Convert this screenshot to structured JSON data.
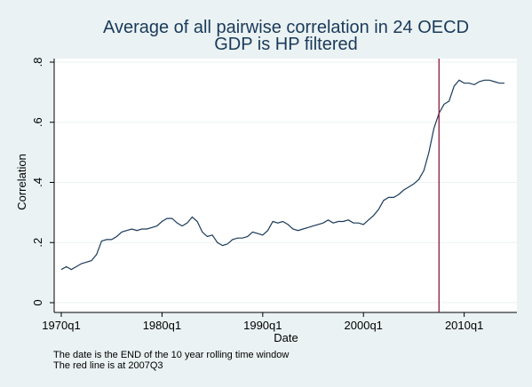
{
  "chart_data": {
    "type": "line",
    "title": "Average of all pairwise correlation in 24 OECD",
    "subtitle": "GDP is HP filtered",
    "xlabel": "Date",
    "ylabel": "Correlation",
    "ylim": [
      0,
      0.8
    ],
    "yticks": [
      0,
      0.2,
      0.4,
      0.6,
      0.8
    ],
    "ytick_labels": [
      "0",
      ".2",
      ".4",
      ".6",
      ".8"
    ],
    "xlim": [
      "1970q1",
      "2014q1"
    ],
    "xticks": [
      "1970q1",
      "1980q1",
      "1990q1",
      "2000q1",
      "2010q1"
    ],
    "grid": true,
    "colors": {
      "line": "#1a3a5a",
      "vline": "#8b1a3a",
      "background": "#eaf2f3",
      "plot": "#ffffff"
    },
    "vline": "2007q3",
    "notes": [
      "The date is the END of the 10 year rolling time window",
      "The red line is at 2007Q3"
    ],
    "series": [
      {
        "x": [
          "1970q1",
          "1970q3",
          "1971q1",
          "1971q3",
          "1972q1",
          "1972q3",
          "1973q1",
          "1973q3",
          "1974q1",
          "1974q3",
          "1975q1",
          "1975q3",
          "1976q1",
          "1976q3",
          "1977q1",
          "1977q3",
          "1978q1",
          "1978q3",
          "1979q1",
          "1979q3",
          "1980q1",
          "1980q3",
          "1981q1",
          "1981q3",
          "1982q1",
          "1982q3",
          "1983q1",
          "1983q3",
          "1984q1",
          "1984q3",
          "1985q1",
          "1985q3",
          "1986q1",
          "1986q3",
          "1987q1",
          "1987q3",
          "1988q1",
          "1988q3",
          "1989q1",
          "1989q3",
          "1990q1",
          "1990q3",
          "1991q1",
          "1991q3",
          "1992q1",
          "1992q3",
          "1993q1",
          "1993q3",
          "1994q1",
          "1994q3",
          "1995q1",
          "1995q3",
          "1996q1",
          "1996q3",
          "1997q1",
          "1997q3",
          "1998q1",
          "1998q3",
          "1999q1",
          "1999q3",
          "2000q1",
          "2000q3",
          "2001q1",
          "2001q3",
          "2002q1",
          "2002q3",
          "2003q1",
          "2003q3",
          "2004q1",
          "2004q3",
          "2005q1",
          "2005q3",
          "2006q1",
          "2006q3",
          "2007q1",
          "2007q3",
          "2008q1",
          "2008q3",
          "2009q1",
          "2009q3",
          "2010q1",
          "2010q3",
          "2011q1",
          "2011q3",
          "2012q1",
          "2012q3",
          "2013q1",
          "2013q3",
          "2014q1"
        ],
        "values": [
          0.11,
          0.12,
          0.11,
          0.12,
          0.13,
          0.135,
          0.14,
          0.16,
          0.205,
          0.21,
          0.21,
          0.22,
          0.235,
          0.24,
          0.245,
          0.24,
          0.245,
          0.245,
          0.25,
          0.255,
          0.27,
          0.28,
          0.28,
          0.265,
          0.255,
          0.265,
          0.285,
          0.27,
          0.235,
          0.22,
          0.225,
          0.2,
          0.19,
          0.195,
          0.21,
          0.215,
          0.215,
          0.22,
          0.235,
          0.23,
          0.225,
          0.24,
          0.27,
          0.265,
          0.27,
          0.26,
          0.245,
          0.24,
          0.245,
          0.25,
          0.255,
          0.26,
          0.265,
          0.275,
          0.265,
          0.27,
          0.27,
          0.275,
          0.265,
          0.265,
          0.26,
          0.275,
          0.29,
          0.31,
          0.34,
          0.35,
          0.35,
          0.36,
          0.375,
          0.385,
          0.395,
          0.41,
          0.44,
          0.5,
          0.58,
          0.63,
          0.66,
          0.67,
          0.72,
          0.74,
          0.73,
          0.73,
          0.725,
          0.735,
          0.74,
          0.74,
          0.735,
          0.73,
          0.73
        ]
      }
    ]
  }
}
